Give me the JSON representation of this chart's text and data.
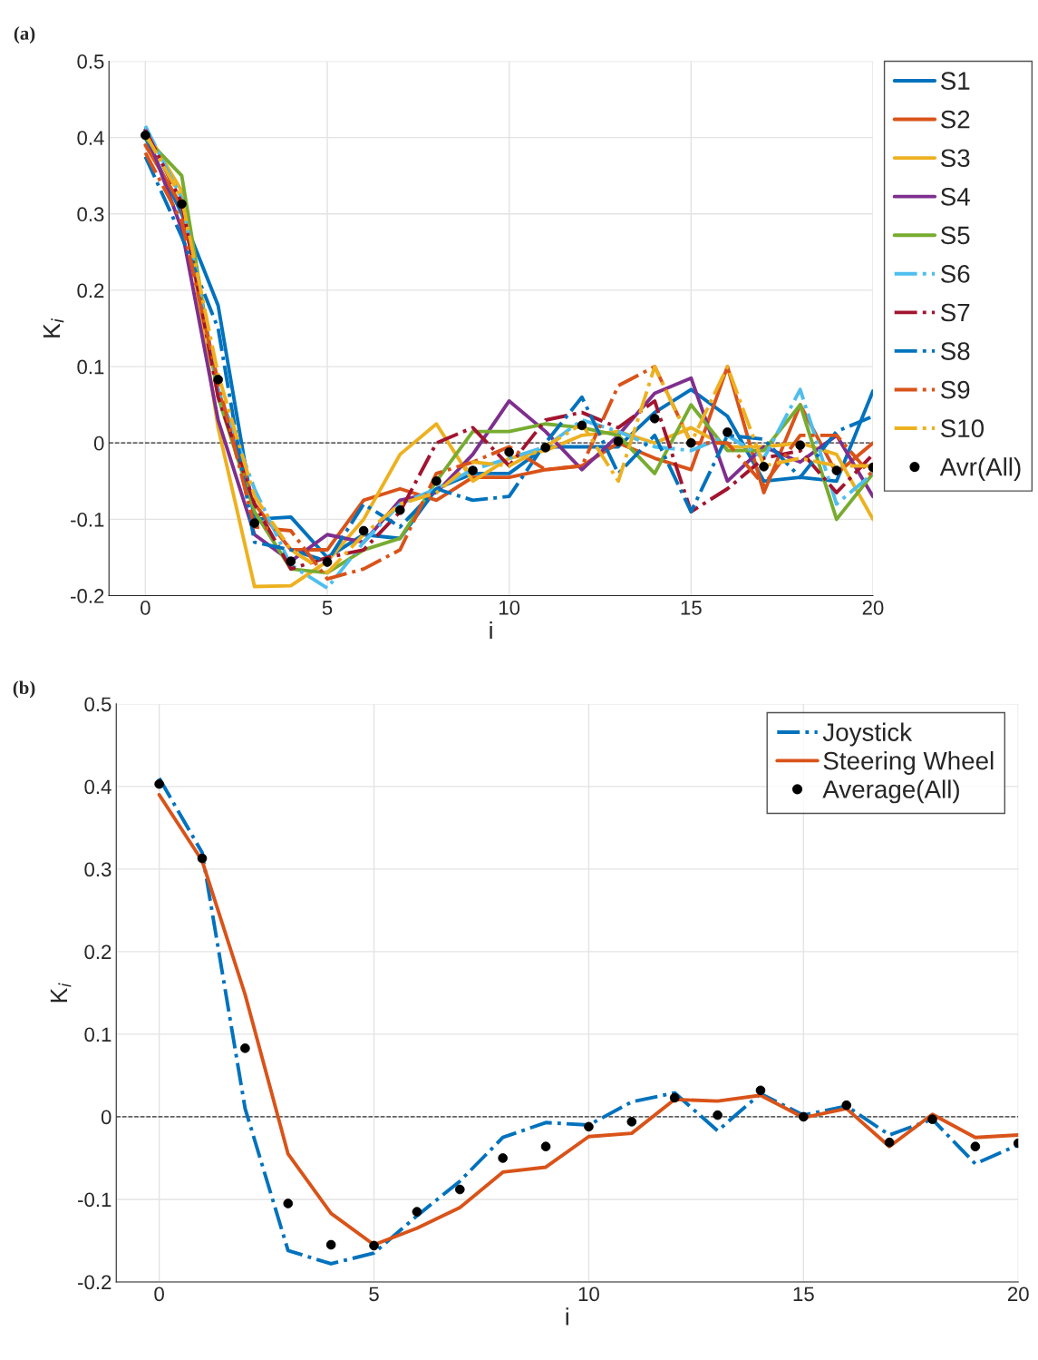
{
  "chart_data": [
    {
      "type": "line",
      "title": "(a)",
      "xlabel": "i",
      "ylabel": "K$_{i}$",
      "x": [
        0,
        1,
        2,
        3,
        4,
        5,
        6,
        7,
        8,
        9,
        10,
        11,
        12,
        13,
        14,
        15,
        16,
        17,
        18,
        19,
        20
      ],
      "xlim": [
        -1,
        20
      ],
      "ylim": [
        -0.2,
        0.5
      ],
      "xticks": [
        0,
        5,
        10,
        15,
        20
      ],
      "yticks": [
        -0.2,
        -0.1,
        0,
        0.1,
        0.2,
        0.3,
        0.4,
        0.5
      ],
      "grid": true,
      "legend": "right",
      "ref_lines": [
        {
          "axis": "y",
          "value": 0,
          "color": "#000000",
          "line_style": "dashed"
        }
      ],
      "series": [
        {
          "name": "S1",
          "color": "#0072bd",
          "line_style": "solid",
          "values": [
            0.4,
            0.3,
            0.18,
            -0.1,
            -0.097,
            -0.15,
            -0.12,
            -0.125,
            -0.06,
            -0.04,
            -0.04,
            -0.005,
            -0.005,
            -0.005,
            0.04,
            0.07,
            0.035,
            -0.05,
            -0.045,
            -0.05,
            0.068
          ]
        },
        {
          "name": "S2",
          "color": "#d95319",
          "line_style": "solid",
          "values": [
            0.39,
            0.31,
            0.07,
            -0.08,
            -0.14,
            -0.14,
            -0.075,
            -0.06,
            -0.075,
            -0.045,
            -0.045,
            -0.035,
            -0.03,
            0.0,
            -0.02,
            -0.035,
            0.1,
            -0.065,
            0.05,
            -0.04,
            0.0
          ]
        },
        {
          "name": "S3",
          "color": "#edb120",
          "line_style": "solid",
          "values": [
            0.41,
            0.33,
            0.02,
            -0.188,
            -0.187,
            -0.155,
            -0.1,
            -0.015,
            0.025,
            -0.05,
            -0.02,
            -0.01,
            0.01,
            0.015,
            0.0,
            0.02,
            -0.005,
            -0.005,
            0.0,
            -0.015,
            -0.1
          ]
        },
        {
          "name": "S4",
          "color": "#7e2f8e",
          "line_style": "solid",
          "values": [
            0.41,
            0.28,
            0.03,
            -0.12,
            -0.155,
            -0.12,
            -0.13,
            -0.075,
            -0.065,
            -0.015,
            0.055,
            0.015,
            -0.035,
            0.01,
            0.065,
            0.085,
            -0.05,
            -0.005,
            -0.025,
            0.01,
            -0.07
          ]
        },
        {
          "name": "S5",
          "color": "#77ac30",
          "line_style": "solid",
          "values": [
            0.4,
            0.35,
            0.06,
            -0.09,
            -0.165,
            -0.17,
            -0.14,
            -0.125,
            -0.05,
            0.015,
            0.015,
            0.025,
            0.02,
            0.01,
            -0.04,
            0.05,
            -0.01,
            -0.01,
            0.05,
            -0.1,
            -0.04
          ]
        },
        {
          "name": "S6",
          "color": "#4dbeee",
          "line_style": "dashdot",
          "values": [
            0.415,
            0.32,
            0.07,
            -0.06,
            -0.16,
            -0.19,
            -0.13,
            -0.08,
            -0.06,
            -0.035,
            -0.02,
            -0.005,
            0.03,
            0.015,
            -0.005,
            -0.01,
            0.01,
            -0.02,
            0.07,
            -0.08,
            -0.04
          ]
        },
        {
          "name": "S7",
          "color": "#a2142f",
          "line_style": "dashdot",
          "values": [
            0.41,
            0.315,
            0.06,
            -0.08,
            -0.165,
            -0.15,
            -0.14,
            -0.09,
            0.0,
            0.02,
            -0.03,
            0.03,
            0.04,
            0.02,
            0.055,
            -0.09,
            -0.06,
            -0.02,
            -0.01,
            -0.065,
            -0.015
          ]
        },
        {
          "name": "S8",
          "color": "#0072bd",
          "line_style": "dashdot",
          "values": [
            0.375,
            0.27,
            0.15,
            -0.13,
            -0.14,
            -0.155,
            -0.08,
            -0.11,
            -0.06,
            -0.075,
            -0.07,
            0.0,
            0.06,
            -0.04,
            0.01,
            -0.09,
            0.01,
            0.005,
            -0.045,
            0.015,
            0.035
          ]
        },
        {
          "name": "S9",
          "color": "#d95319",
          "line_style": "dashdot",
          "values": [
            0.38,
            0.29,
            0.08,
            -0.11,
            -0.115,
            -0.178,
            -0.165,
            -0.14,
            -0.04,
            -0.025,
            -0.005,
            -0.035,
            -0.03,
            0.075,
            0.1,
            0.0,
            0.0,
            -0.055,
            0.01,
            0.01,
            -0.045
          ]
        },
        {
          "name": "S10",
          "color": "#edb120",
          "line_style": "dashdot",
          "values": [
            0.405,
            0.32,
            0.09,
            -0.07,
            -0.14,
            -0.17,
            -0.12,
            -0.08,
            -0.065,
            -0.025,
            -0.03,
            -0.005,
            0.025,
            -0.05,
            0.1,
            0.0,
            0.1,
            -0.03,
            -0.02,
            -0.03,
            -0.03
          ]
        },
        {
          "name": "Avr(All)",
          "type": "scatter",
          "color": "#000000",
          "marker": "circle",
          "values": [
            0.403,
            0.313,
            0.083,
            -0.105,
            -0.155,
            -0.156,
            -0.115,
            -0.088,
            -0.05,
            -0.036,
            -0.012,
            -0.006,
            0.023,
            0.002,
            0.032,
            0.0,
            0.014,
            -0.031,
            -0.003,
            -0.036,
            -0.032
          ]
        }
      ]
    },
    {
      "type": "line",
      "title": "(b)",
      "xlabel": "i",
      "ylabel": "K$_{i}$",
      "x": [
        0,
        1,
        2,
        3,
        4,
        5,
        6,
        7,
        8,
        9,
        10,
        11,
        12,
        13,
        14,
        15,
        16,
        17,
        18,
        19,
        20
      ],
      "xlim": [
        -1,
        20
      ],
      "ylim": [
        -0.2,
        0.5
      ],
      "xticks": [
        0,
        5,
        10,
        15,
        20
      ],
      "yticks": [
        -0.2,
        -0.1,
        0,
        0.1,
        0.2,
        0.3,
        0.4,
        0.5
      ],
      "grid": true,
      "legend": "top right",
      "ref_lines": [
        {
          "axis": "y",
          "value": 0,
          "color": "#000000",
          "line_style": "dashed"
        }
      ],
      "series": [
        {
          "name": "Joystick",
          "color": "#0072bd",
          "line_style": "dashdot",
          "values": [
            0.41,
            0.32,
            0.01,
            -0.162,
            -0.178,
            -0.165,
            -0.12,
            -0.078,
            -0.025,
            -0.007,
            -0.01,
            0.018,
            0.029,
            -0.017,
            0.028,
            0.002,
            0.013,
            -0.022,
            -0.003,
            -0.057,
            -0.034
          ]
        },
        {
          "name": "Steering Wheel",
          "color": "#d95319",
          "line_style": "solid",
          "values": [
            0.39,
            0.31,
            0.148,
            -0.045,
            -0.117,
            -0.155,
            -0.135,
            -0.11,
            -0.067,
            -0.061,
            -0.024,
            -0.02,
            0.021,
            0.019,
            0.026,
            -0.001,
            0.01,
            -0.036,
            0.003,
            -0.025,
            -0.022
          ]
        },
        {
          "name": "Average(All)",
          "type": "scatter",
          "color": "#000000",
          "marker": "circle",
          "values": [
            0.403,
            0.313,
            0.083,
            -0.105,
            -0.155,
            -0.156,
            -0.115,
            -0.088,
            -0.05,
            -0.036,
            -0.012,
            -0.006,
            0.023,
            0.002,
            0.032,
            0.0,
            0.014,
            -0.031,
            -0.003,
            -0.036,
            -0.032
          ]
        }
      ]
    }
  ]
}
